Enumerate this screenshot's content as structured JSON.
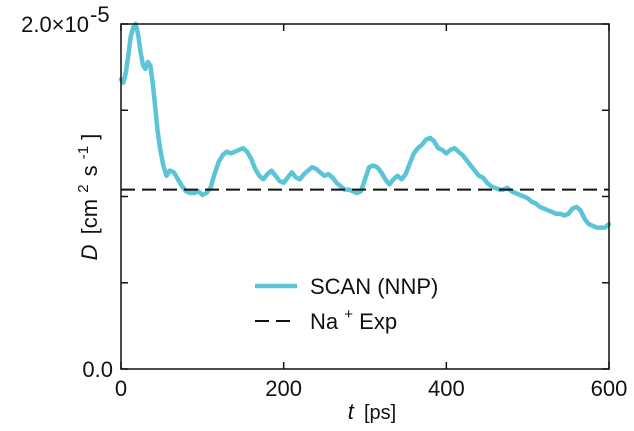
{
  "chart_data": {
    "type": "line",
    "title": "",
    "xlabel": {
      "symbol": "t",
      "unit": "[ps]"
    },
    "ylabel": {
      "symbol": "D",
      "unit_prefix": "[cm",
      "unit_sup1": "2",
      "unit_mid": "s",
      "unit_sup2": "-1",
      "unit_suffix": "]"
    },
    "xlim": [
      0,
      600
    ],
    "ylim": [
      0,
      2e-05
    ],
    "x_ticks": [
      0,
      200,
      400,
      600
    ],
    "x_tick_labels": [
      "0",
      "200",
      "400",
      "600"
    ],
    "y_ticks": [
      0,
      1e-05,
      2e-05
    ],
    "y_tick_labels": [
      {
        "text": "0.0",
        "exp": ""
      },
      {
        "text": "",
        "exp": ""
      },
      {
        "text": "2.0×10",
        "exp": "-5"
      }
    ],
    "y_minor_ticks": [
      5e-06,
      1.5e-05
    ],
    "grid": false,
    "legend_placement": "lower-center",
    "colors": {
      "scan": "#5bc4d7",
      "exp": "#111111",
      "axis": "#111111"
    },
    "series": [
      {
        "name": "SCAN (NNP)",
        "style": "solid",
        "x": [
          0,
          3,
          6,
          9,
          12,
          15,
          18,
          21,
          24,
          27,
          30,
          33,
          36,
          39,
          42,
          45,
          48,
          52,
          56,
          60,
          65,
          70,
          75,
          80,
          85,
          90,
          95,
          100,
          105,
          110,
          115,
          120,
          125,
          130,
          135,
          140,
          145,
          150,
          155,
          160,
          165,
          170,
          175,
          180,
          185,
          190,
          195,
          200,
          205,
          210,
          215,
          220,
          225,
          230,
          235,
          240,
          245,
          250,
          255,
          260,
          265,
          270,
          275,
          280,
          285,
          290,
          295,
          300,
          305,
          310,
          315,
          320,
          325,
          330,
          335,
          340,
          345,
          350,
          355,
          360,
          365,
          370,
          375,
          380,
          385,
          390,
          395,
          400,
          405,
          410,
          415,
          420,
          425,
          430,
          435,
          440,
          445,
          450,
          455,
          460,
          465,
          470,
          475,
          480,
          485,
          490,
          495,
          500,
          505,
          510,
          515,
          520,
          525,
          530,
          535,
          540,
          545,
          550,
          555,
          560,
          565,
          570,
          575,
          580,
          585,
          590,
          595,
          600
        ],
        "y": [
          1.68e-05,
          1.66e-05,
          1.72e-05,
          1.82e-05,
          1.93e-05,
          1.98e-05,
          2e-05,
          1.94e-05,
          1.84e-05,
          1.76e-05,
          1.74e-05,
          1.78e-05,
          1.76e-05,
          1.66e-05,
          1.52e-05,
          1.38e-05,
          1.28e-05,
          1.18e-05,
          1.12e-05,
          1.15e-05,
          1.14e-05,
          1.1e-05,
          1.06e-05,
          1.03e-05,
          1.02e-05,
          1.02e-05,
          1.03e-05,
          1.01e-05,
          1.02e-05,
          1.05e-05,
          1.13e-05,
          1.2e-05,
          1.24e-05,
          1.26e-05,
          1.25e-05,
          1.26e-05,
          1.27e-05,
          1.28e-05,
          1.26e-05,
          1.22e-05,
          1.16e-05,
          1.12e-05,
          1.1e-05,
          1.13e-05,
          1.15e-05,
          1.12e-05,
          1.09e-05,
          1.08e-05,
          1.11e-05,
          1.14e-05,
          1.11e-05,
          1.1e-05,
          1.13e-05,
          1.15e-05,
          1.17e-05,
          1.16e-05,
          1.14e-05,
          1.12e-05,
          1.13e-05,
          1.11e-05,
          1.08e-05,
          1.06e-05,
          1.04e-05,
          1.04e-05,
          1.03e-05,
          1.02e-05,
          1.03e-05,
          1.1e-05,
          1.17e-05,
          1.18e-05,
          1.17e-05,
          1.14e-05,
          1.1e-05,
          1.07e-05,
          1.1e-05,
          1.12e-05,
          1.1e-05,
          1.13e-05,
          1.19e-05,
          1.25e-05,
          1.28e-05,
          1.3e-05,
          1.33e-05,
          1.34e-05,
          1.32e-05,
          1.28e-05,
          1.27e-05,
          1.25e-05,
          1.27e-05,
          1.28e-05,
          1.26e-05,
          1.24e-05,
          1.21e-05,
          1.18e-05,
          1.15e-05,
          1.12e-05,
          1.11e-05,
          1.08e-05,
          1.06e-05,
          1.05e-05,
          1.04e-05,
          1.04e-05,
          1.05e-05,
          1.03e-05,
          1.02e-05,
          1.01e-05,
          1e-05,
          9.9e-06,
          9.7e-06,
          9.6e-06,
          9.4e-06,
          9.3e-06,
          9.2e-06,
          9.1e-06,
          9e-06,
          9e-06,
          8.9e-06,
          9e-06,
          9.3e-06,
          9.4e-06,
          9.2e-06,
          8.7e-06,
          8.4e-06,
          8.3e-06,
          8.2e-06,
          8.2e-06,
          8.2e-06,
          8.4e-06
        ]
      },
      {
        "name": "Na⁺ Exp",
        "legend_base": "Na",
        "legend_sup": "+",
        "legend_suffix": " Exp",
        "style": "dashed",
        "x": [
          0,
          600
        ],
        "y": [
          1.04e-05,
          1.04e-05
        ]
      }
    ]
  }
}
